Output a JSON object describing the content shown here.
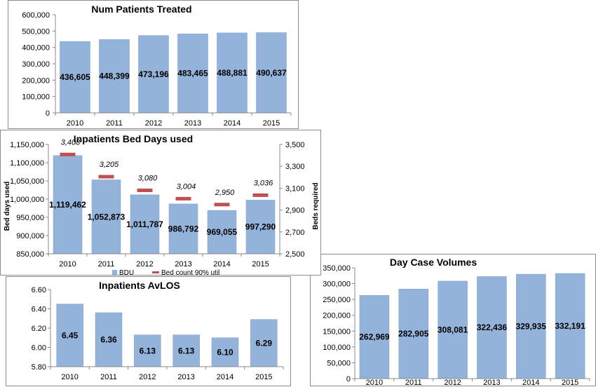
{
  "colors": {
    "bar": "#94b3db",
    "bar_edge": "#7f9fcc",
    "marker": "#c0504d",
    "axis": "#888888"
  },
  "chart_data": [
    {
      "id": "patients",
      "type": "bar",
      "title": "Num Patients Treated",
      "categories": [
        "2010",
        "2011",
        "2012",
        "2013",
        "2014",
        "2015"
      ],
      "values": [
        436605,
        448399,
        473196,
        483465,
        488881,
        490637
      ],
      "value_labels": [
        "436,605",
        "448,399",
        "473,196",
        "483,465",
        "488,881",
        "490,637"
      ],
      "ylim": [
        0,
        600000
      ],
      "yticks": [
        "0",
        "100,000",
        "200,000",
        "300,000",
        "400,000",
        "500,000",
        "600,000"
      ],
      "grid": false
    },
    {
      "id": "beddays",
      "type": "bar",
      "title": "Inpatients Bed Days used",
      "categories": [
        "2010",
        "2011",
        "2012",
        "2013",
        "2014",
        "2015"
      ],
      "ylabel": "Bed days used",
      "y2label": "Beds required",
      "ylim": [
        850000,
        1150000
      ],
      "yticks": [
        "850,000",
        "900,000",
        "950,000",
        "1,000,000",
        "1,050,000",
        "1,100,000",
        "1,150,000"
      ],
      "y2lim": [
        2500,
        3500
      ],
      "y2ticks": [
        "2,500",
        "2,700",
        "2,900",
        "3,100",
        "3,300",
        "3,500"
      ],
      "series": [
        {
          "name": "BDU",
          "type": "bar",
          "axis": "left",
          "values": [
            1119462,
            1052873,
            1011787,
            986792,
            969055,
            997290
          ],
          "labels": [
            "1,119,462",
            "1,052,873",
            "1,011,787",
            "986,792",
            "969,055",
            "997,290"
          ]
        },
        {
          "name": "Bed count 90% util",
          "type": "marker",
          "axis": "right",
          "values": [
            3408,
            3205,
            3080,
            3004,
            2950,
            3036
          ],
          "labels": [
            "3,408",
            "3,205",
            "3,080",
            "3,004",
            "2,950",
            "3,036"
          ]
        }
      ],
      "legend": "bottom",
      "grid": false
    },
    {
      "id": "avlos",
      "type": "bar",
      "title": "Inpatients AvLOS",
      "categories": [
        "2010",
        "2011",
        "2012",
        "2013",
        "2014",
        "2015"
      ],
      "values": [
        6.45,
        6.36,
        6.13,
        6.13,
        6.1,
        6.29
      ],
      "value_labels": [
        "6.45",
        "6.36",
        "6.13",
        "6.13",
        "6.10",
        "6.29"
      ],
      "ylim": [
        5.8,
        6.6
      ],
      "yticks": [
        "5.80",
        "6.00",
        "6.20",
        "6.40",
        "6.60"
      ],
      "grid": false
    },
    {
      "id": "daycase",
      "type": "bar",
      "title": "Day Case Volumes",
      "categories": [
        "2010",
        "2011",
        "2012",
        "2013",
        "2014",
        "2015"
      ],
      "values": [
        262969,
        282905,
        308081,
        322436,
        329935,
        332191
      ],
      "value_labels": [
        "262,969",
        "282,905",
        "308,081",
        "322,436",
        "329,935",
        "332,191"
      ],
      "ylim": [
        0,
        350000
      ],
      "yticks": [
        "0",
        "50,000",
        "100,000",
        "150,000",
        "200,000",
        "250,000",
        "300,000",
        "350,000"
      ],
      "grid": false
    }
  ]
}
